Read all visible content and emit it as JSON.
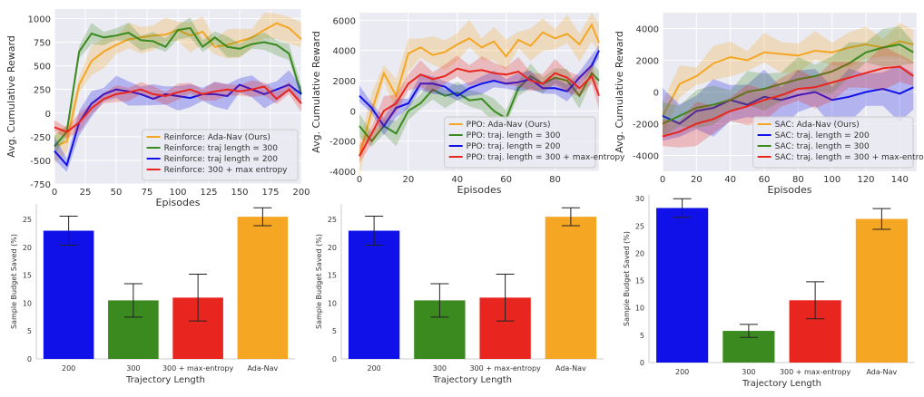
{
  "colors": {
    "adanav": "#f5a623",
    "len300": "#3a8a1f",
    "len200": "#1010e8",
    "entropy": "#e8261f",
    "plot_bg": "#eaeaf2",
    "grid": "#ffffff"
  },
  "chart_data": [
    {
      "id": "reinforce-reward",
      "type": "line",
      "title": "",
      "xlabel": "Episodes",
      "ylabel": "Avg. Cumulative Reward",
      "xlim": [
        0,
        200
      ],
      "ylim": [
        -750,
        1100
      ],
      "xticks": [
        0,
        25,
        50,
        75,
        100,
        125,
        150,
        175,
        200
      ],
      "yticks": [
        -750,
        -500,
        -250,
        0,
        250,
        500,
        750,
        1000
      ],
      "legend_position": "lower-right",
      "x": [
        0,
        10,
        20,
        30,
        40,
        50,
        60,
        70,
        80,
        90,
        100,
        110,
        120,
        130,
        140,
        150,
        160,
        170,
        180,
        190,
        200
      ],
      "series": [
        {
          "name": "Reinforce: Ada-Nav (Ours)",
          "color_key": "adanav",
          "band": 130,
          "values": [
            -350,
            -300,
            300,
            550,
            650,
            720,
            780,
            800,
            820,
            830,
            880,
            820,
            860,
            700,
            720,
            760,
            800,
            880,
            950,
            900,
            780
          ]
        },
        {
          "name": "Reinforce: traj length = 300",
          "color_key": "len300",
          "band": 80,
          "values": [
            -350,
            -200,
            650,
            840,
            800,
            820,
            850,
            770,
            760,
            700,
            880,
            900,
            700,
            800,
            700,
            680,
            730,
            750,
            720,
            630,
            200
          ]
        },
        {
          "name": "Reinforce: traj length = 200",
          "color_key": "len200",
          "band": 110,
          "values": [
            -400,
            -550,
            -100,
            100,
            200,
            250,
            230,
            200,
            150,
            200,
            180,
            160,
            200,
            200,
            180,
            300,
            250,
            200,
            250,
            300,
            200
          ]
        },
        {
          "name": "Reinforce: 300 + max entropy",
          "color_key": "entropy",
          "band": 70,
          "values": [
            -150,
            -200,
            -100,
            50,
            150,
            200,
            220,
            250,
            200,
            180,
            220,
            250,
            200,
            230,
            250,
            230,
            250,
            280,
            150,
            250,
            100
          ]
        }
      ]
    },
    {
      "id": "ppo-reward",
      "type": "line",
      "title": "",
      "xlabel": "Episodes",
      "ylabel": "Avg. Cumulative Reward",
      "xlim": [
        0,
        98
      ],
      "ylim": [
        -4000,
        6500
      ],
      "xticks": [
        0,
        20,
        40,
        60,
        80
      ],
      "yticks": [
        -4000,
        -2000,
        0,
        2000,
        4000,
        6000
      ],
      "legend_position": "lower-right",
      "x": [
        0,
        5,
        10,
        15,
        20,
        25,
        30,
        35,
        40,
        45,
        50,
        55,
        60,
        65,
        70,
        75,
        80,
        85,
        90,
        95,
        98
      ],
      "series": [
        {
          "name": "PPO: Ada-Nav (Ours)",
          "color_key": "adanav",
          "band": 900,
          "values": [
            -3000,
            0,
            2500,
            1000,
            3800,
            4200,
            3700,
            3900,
            4400,
            4800,
            4200,
            4600,
            3600,
            4700,
            4300,
            5200,
            4800,
            5100,
            4400,
            5700,
            4500
          ]
        },
        {
          "name": "PPO: traj. length = 300",
          "color_key": "len300",
          "band": 600,
          "values": [
            -1000,
            -2000,
            -1000,
            -1500,
            0,
            500,
            1400,
            1000,
            1200,
            700,
            800,
            0,
            -500,
            1500,
            2300,
            1800,
            2200,
            2000,
            1000,
            2500,
            2000
          ]
        },
        {
          "name": "PPO: traj. length = 200",
          "color_key": "len200",
          "band": 500,
          "values": [
            1000,
            200,
            -1000,
            200,
            500,
            1800,
            1800,
            1600,
            1000,
            1500,
            1800,
            2000,
            1800,
            1900,
            2100,
            1500,
            1500,
            1300,
            2200,
            3000,
            4000
          ]
        },
        {
          "name": "PPO: traj. length = 300 + max-entropy",
          "color_key": "entropy",
          "band": 700,
          "values": [
            -3000,
            -1500,
            0,
            500,
            1800,
            2400,
            2100,
            2300,
            2800,
            2600,
            2700,
            2500,
            2400,
            2600,
            2000,
            1800,
            2500,
            2200,
            1500,
            2300,
            1000
          ]
        }
      ]
    },
    {
      "id": "sac-reward",
      "type": "line",
      "title": "",
      "xlabel": "Episodes",
      "ylabel": "Avg. Cumulative Reward",
      "xlim": [
        0,
        150
      ],
      "ylim": [
        -5000,
        5000
      ],
      "xticks": [
        0,
        20,
        40,
        60,
        80,
        100,
        120,
        140
      ],
      "yticks": [
        -4000,
        -2000,
        0,
        2000,
        4000
      ],
      "legend_position": "lower-right",
      "x": [
        0,
        10,
        20,
        30,
        40,
        50,
        60,
        70,
        80,
        90,
        100,
        110,
        120,
        130,
        140,
        148
      ],
      "series": [
        {
          "name": "SAC: Ada-Nav (Ours)",
          "color_key": "adanav",
          "band": 900,
          "values": [
            -1500,
            500,
            1000,
            1800,
            2200,
            2000,
            2500,
            2400,
            2300,
            2600,
            2500,
            2800,
            3000,
            2800,
            3200,
            3000
          ]
        },
        {
          "name": "SAC: traj. length = 200",
          "color_key": "len200",
          "band": 1300,
          "values": [
            -1500,
            -2000,
            -1200,
            -1000,
            -500,
            -800,
            -300,
            -500,
            -200,
            0,
            -500,
            -300,
            0,
            200,
            -100,
            300
          ]
        },
        {
          "name": "SAC: traj. length = 300",
          "color_key": "len300",
          "band": 1000,
          "values": [
            -2000,
            -1500,
            -1000,
            -800,
            -500,
            0,
            200,
            500,
            800,
            1000,
            1300,
            1800,
            2500,
            2800,
            3000,
            2500
          ]
        },
        {
          "name": "SAC:  traj. length = 300 + max-entropy",
          "color_key": "entropy",
          "band": 1000,
          "values": [
            -2800,
            -2500,
            -2000,
            -1700,
            -1200,
            -900,
            -500,
            -200,
            200,
            300,
            600,
            900,
            1200,
            1500,
            1600,
            1000
          ]
        }
      ]
    },
    {
      "id": "reinforce-budget",
      "type": "bar",
      "title": "",
      "xlabel": "Trajectory Length",
      "ylabel": "Sample Budget Saved (%)",
      "ylim": [
        0,
        27.8
      ],
      "yticks": [
        0,
        5,
        10,
        15,
        20,
        25
      ],
      "categories": [
        "200",
        "300",
        "300 + max-entropy",
        "Ada-Nav"
      ],
      "values": [
        23,
        10.5,
        11,
        25.5
      ],
      "errors": [
        2.6,
        3,
        4.2,
        1.6
      ],
      "color_keys": [
        "len200",
        "len300",
        "entropy",
        "adanav"
      ]
    },
    {
      "id": "ppo-budget",
      "type": "bar",
      "title": "",
      "xlabel": "Trajectory Length",
      "ylabel": "Sample Budget Saved (%)",
      "ylim": [
        0,
        27.8
      ],
      "yticks": [
        0,
        5,
        10,
        15,
        20,
        25
      ],
      "categories": [
        "200",
        "300",
        "300 + max-entropy",
        "Ada-Nav"
      ],
      "values": [
        23,
        10.5,
        11,
        25.5
      ],
      "errors": [
        2.6,
        3,
        4.2,
        1.6
      ],
      "color_keys": [
        "len200",
        "len300",
        "entropy",
        "adanav"
      ]
    },
    {
      "id": "sac-budget",
      "type": "bar",
      "title": "",
      "xlabel": "Trajectory Length",
      "ylabel": "Sample Budget Saved (%)",
      "ylim": [
        0,
        30.7
      ],
      "yticks": [
        0,
        5,
        10,
        15,
        20,
        25,
        30
      ],
      "categories": [
        "200",
        "300",
        "300 + max-entropy",
        "Ada-Nav"
      ],
      "values": [
        28.3,
        5.8,
        11.4,
        26.3
      ],
      "errors": [
        1.7,
        1.2,
        3.4,
        1.9
      ],
      "color_keys": [
        "len200",
        "len300",
        "entropy",
        "adanav"
      ]
    }
  ]
}
